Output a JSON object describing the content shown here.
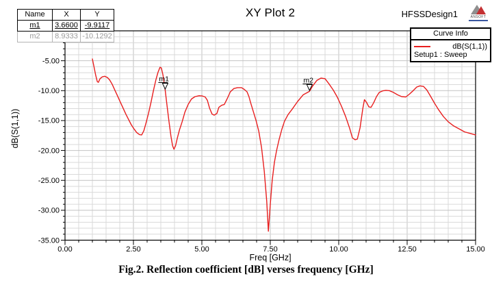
{
  "header": {
    "title": "XY Plot 2",
    "design": "HFSSDesign1",
    "logo_text": "ANSOFT"
  },
  "marker_table": {
    "columns": [
      "Name",
      "X",
      "Y"
    ],
    "rows": [
      {
        "name": "m1",
        "x": "3.6600",
        "y": "-9.9117"
      },
      {
        "name": "m2",
        "x": "8.9333",
        "y": "-10.1292"
      }
    ]
  },
  "legend": {
    "header": "Curve Info",
    "series_label": "dB(S(1,1))",
    "setup_label": "Setup1 : Sweep",
    "line_color": "#e81e1e"
  },
  "caption": "Fig.2. Reflection coefficient [dB] verses frequency [GHz]",
  "chart_data": {
    "type": "line",
    "title": "XY Plot 2",
    "xlabel": "Freq [GHz]",
    "ylabel": "dB(S(1,1))",
    "xlim": [
      0,
      15
    ],
    "ylim": [
      -35,
      0
    ],
    "x_ticks": [
      0,
      2.5,
      5,
      7.5,
      10,
      12.5,
      15
    ],
    "x_tick_labels": [
      "0.00",
      "2.50",
      "5.00",
      "7.50",
      "10.00",
      "12.50",
      "15.00"
    ],
    "y_ticks": [
      -5,
      -10,
      -15,
      -20,
      -25,
      -30,
      -35
    ],
    "y_tick_labels": [
      "-5.00",
      "-10.00",
      "-15.00",
      "-20.00",
      "-25.00",
      "-30.00",
      "-35.00"
    ],
    "x_minor_step": 0.5,
    "y_minor_step": 1,
    "grid": true,
    "grid_minor_color": "#d9d9d9",
    "grid_major_color": "#c2c2c2",
    "axis_color": "#000000",
    "legend_position": "top-right",
    "series": [
      {
        "name": "dB(S(1,1))",
        "setup": "Setup1 : Sweep",
        "color": "#e81e1e",
        "points": [
          [
            1.0,
            -4.7
          ],
          [
            1.05,
            -5.8
          ],
          [
            1.12,
            -7.4
          ],
          [
            1.18,
            -8.5
          ],
          [
            1.22,
            -8.6
          ],
          [
            1.28,
            -8.0
          ],
          [
            1.36,
            -7.7
          ],
          [
            1.45,
            -7.6
          ],
          [
            1.55,
            -7.8
          ],
          [
            1.63,
            -8.2
          ],
          [
            1.72,
            -8.9
          ],
          [
            1.82,
            -9.9
          ],
          [
            1.92,
            -10.9
          ],
          [
            2.02,
            -11.9
          ],
          [
            2.12,
            -12.9
          ],
          [
            2.22,
            -13.9
          ],
          [
            2.32,
            -14.8
          ],
          [
            2.42,
            -15.7
          ],
          [
            2.52,
            -16.4
          ],
          [
            2.62,
            -17.0
          ],
          [
            2.72,
            -17.35
          ],
          [
            2.8,
            -17.4
          ],
          [
            2.88,
            -16.7
          ],
          [
            2.96,
            -15.4
          ],
          [
            3.05,
            -13.8
          ],
          [
            3.14,
            -12.0
          ],
          [
            3.23,
            -10.0
          ],
          [
            3.32,
            -8.2
          ],
          [
            3.4,
            -6.9
          ],
          [
            3.47,
            -6.1
          ],
          [
            3.52,
            -6.2
          ],
          [
            3.58,
            -7.4
          ],
          [
            3.66,
            -9.91
          ],
          [
            3.73,
            -12.6
          ],
          [
            3.8,
            -15.2
          ],
          [
            3.87,
            -17.6
          ],
          [
            3.93,
            -19.2
          ],
          [
            3.98,
            -19.8
          ],
          [
            4.04,
            -19.2
          ],
          [
            4.1,
            -18.0
          ],
          [
            4.18,
            -16.6
          ],
          [
            4.28,
            -15.2
          ],
          [
            4.38,
            -13.6
          ],
          [
            4.5,
            -12.3
          ],
          [
            4.62,
            -11.4
          ],
          [
            4.75,
            -11.0
          ],
          [
            4.9,
            -10.85
          ],
          [
            5.02,
            -10.9
          ],
          [
            5.12,
            -11.05
          ],
          [
            5.2,
            -11.6
          ],
          [
            5.28,
            -12.9
          ],
          [
            5.37,
            -13.9
          ],
          [
            5.45,
            -14.1
          ],
          [
            5.55,
            -13.8
          ],
          [
            5.62,
            -12.8
          ],
          [
            5.72,
            -12.45
          ],
          [
            5.82,
            -12.3
          ],
          [
            5.92,
            -11.4
          ],
          [
            6.04,
            -10.2
          ],
          [
            6.17,
            -9.65
          ],
          [
            6.3,
            -9.5
          ],
          [
            6.45,
            -9.5
          ],
          [
            6.55,
            -9.8
          ],
          [
            6.65,
            -10.2
          ],
          [
            6.72,
            -11.0
          ],
          [
            6.78,
            -12.0
          ],
          [
            6.88,
            -13.5
          ],
          [
            6.98,
            -15.0
          ],
          [
            7.08,
            -16.8
          ],
          [
            7.18,
            -19.5
          ],
          [
            7.28,
            -23.5
          ],
          [
            7.37,
            -28.5
          ],
          [
            7.43,
            -33.5
          ],
          [
            7.5,
            -29.0
          ],
          [
            7.57,
            -25.0
          ],
          [
            7.65,
            -22.0
          ],
          [
            7.73,
            -20.0
          ],
          [
            7.82,
            -18.2
          ],
          [
            7.92,
            -16.5
          ],
          [
            8.02,
            -15.1
          ],
          [
            8.15,
            -14.0
          ],
          [
            8.3,
            -13.1
          ],
          [
            8.5,
            -11.8
          ],
          [
            8.7,
            -10.7
          ],
          [
            8.93,
            -10.13
          ],
          [
            9.05,
            -9.2
          ],
          [
            9.2,
            -8.3
          ],
          [
            9.35,
            -7.9
          ],
          [
            9.5,
            -8.0
          ],
          [
            9.65,
            -8.9
          ],
          [
            9.8,
            -9.9
          ],
          [
            9.95,
            -11.1
          ],
          [
            10.1,
            -12.6
          ],
          [
            10.25,
            -14.3
          ],
          [
            10.4,
            -16.3
          ],
          [
            10.5,
            -17.9
          ],
          [
            10.6,
            -18.2
          ],
          [
            10.68,
            -18.1
          ],
          [
            10.78,
            -16.2
          ],
          [
            10.88,
            -13.0
          ],
          [
            10.94,
            -11.5
          ],
          [
            11.02,
            -12.0
          ],
          [
            11.1,
            -12.7
          ],
          [
            11.18,
            -12.8
          ],
          [
            11.28,
            -12.0
          ],
          [
            11.38,
            -11.0
          ],
          [
            11.48,
            -10.3
          ],
          [
            11.6,
            -10.05
          ],
          [
            11.72,
            -9.95
          ],
          [
            11.85,
            -10.0
          ],
          [
            12.0,
            -10.3
          ],
          [
            12.15,
            -10.7
          ],
          [
            12.3,
            -11.0
          ],
          [
            12.45,
            -11.05
          ],
          [
            12.58,
            -10.6
          ],
          [
            12.72,
            -10.0
          ],
          [
            12.85,
            -9.4
          ],
          [
            12.97,
            -9.2
          ],
          [
            13.1,
            -9.3
          ],
          [
            13.22,
            -9.9
          ],
          [
            13.35,
            -10.9
          ],
          [
            13.5,
            -12.1
          ],
          [
            13.65,
            -13.2
          ],
          [
            13.82,
            -14.3
          ],
          [
            14.0,
            -15.2
          ],
          [
            14.2,
            -15.9
          ],
          [
            14.4,
            -16.4
          ],
          [
            14.6,
            -16.9
          ],
          [
            14.8,
            -17.15
          ],
          [
            15.0,
            -17.4
          ]
        ]
      }
    ],
    "markers": [
      {
        "name": "m1",
        "x": 3.66,
        "y": -9.9117
      },
      {
        "name": "m2",
        "x": 8.9333,
        "y": -10.1292
      }
    ]
  }
}
